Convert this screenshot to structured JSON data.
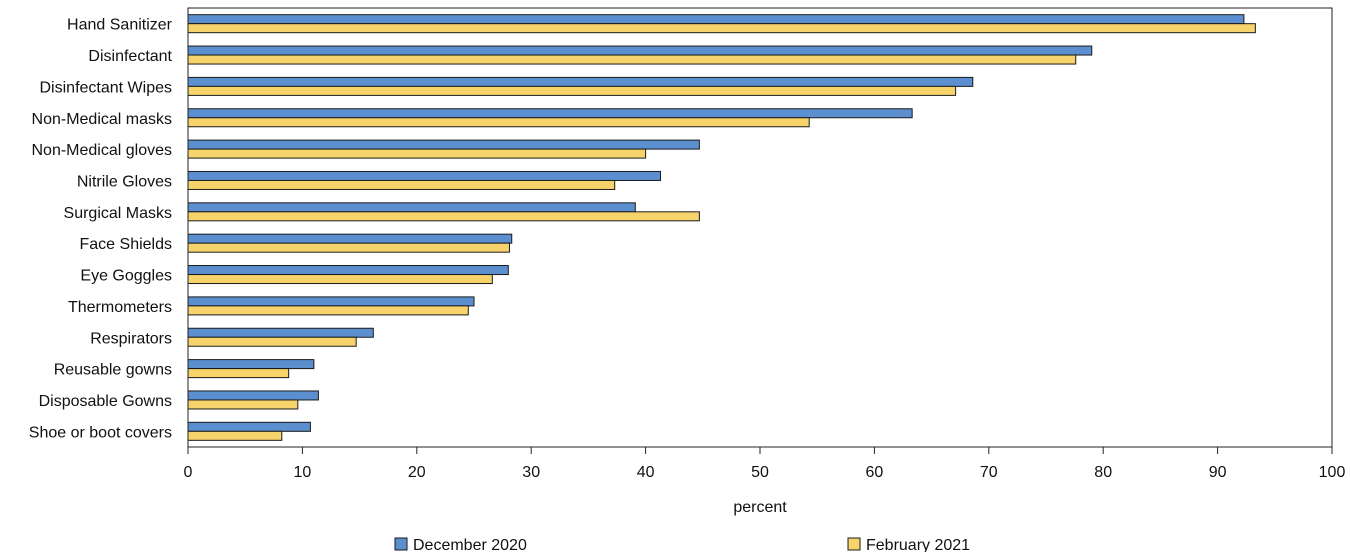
{
  "chart_data": {
    "type": "bar",
    "orientation": "horizontal",
    "categories": [
      "Hand Sanitizer",
      "Disinfectant",
      "Disinfectant Wipes",
      "Non-Medical masks",
      "Non-Medical gloves",
      "Nitrile Gloves",
      "Surgical Masks",
      "Face Shields",
      "Eye Goggles",
      "Thermometers",
      "Respirators",
      "Reusable gowns",
      "Disposable Gowns",
      "Shoe or boot covers"
    ],
    "series": [
      {
        "name": "December 2020",
        "color": "#5b8fcf",
        "values": [
          92.3,
          79.0,
          68.6,
          63.3,
          44.7,
          41.3,
          39.1,
          28.3,
          28.0,
          25.0,
          16.2,
          11.0,
          11.4,
          10.7
        ]
      },
      {
        "name": "February 2021",
        "color": "#f7d46b",
        "values": [
          93.3,
          77.6,
          67.1,
          54.3,
          40.0,
          37.3,
          44.7,
          28.1,
          26.6,
          24.5,
          14.7,
          8.8,
          9.6,
          8.2
        ]
      }
    ],
    "xlabel": "percent",
    "ylabel": "",
    "title": "",
    "xlim": [
      0,
      100
    ],
    "xticks": [
      0,
      10,
      20,
      30,
      40,
      50,
      60,
      70,
      80,
      90,
      100
    ],
    "grid": false,
    "legend_position": "bottom"
  }
}
